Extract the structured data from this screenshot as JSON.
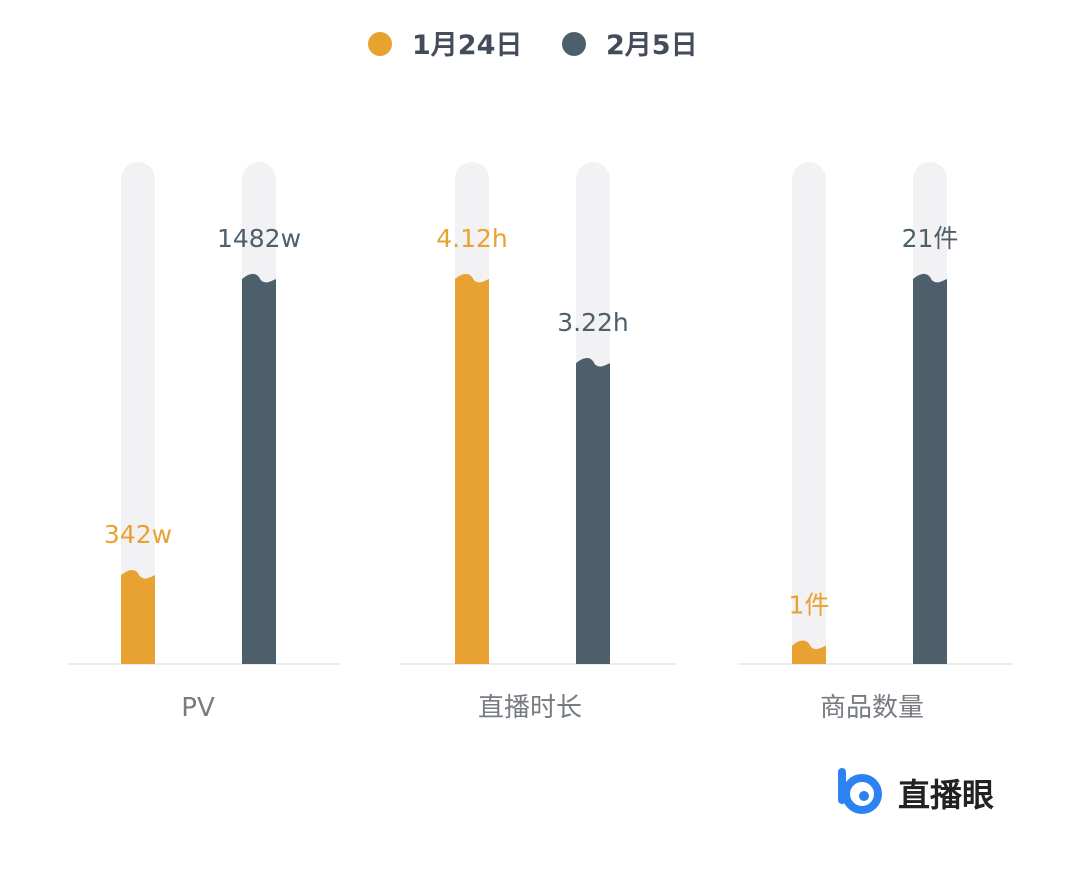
{
  "colors": {
    "series_a": "#e8a232",
    "series_b": "#4e5f6c",
    "track": "#f2f2f4",
    "baseline": "#ececec",
    "brand_blue": "#2b82f0"
  },
  "brand": {
    "name": "直播眼",
    "icon": "eye-logo-icon"
  },
  "chart_data": [
    {
      "type": "bar",
      "categories": [
        "PV"
      ],
      "series": [
        {
          "name": "1月24日",
          "values": [
            342
          ],
          "labels": [
            "342w"
          ]
        },
        {
          "name": "2月5日",
          "values": [
            1482
          ],
          "labels": [
            "1482w"
          ]
        }
      ],
      "legend": "top-center"
    },
    {
      "type": "bar",
      "categories": [
        "直播时长"
      ],
      "series": [
        {
          "name": "1月24日",
          "values": [
            4.12
          ],
          "labels": [
            "4.12h"
          ]
        },
        {
          "name": "2月5日",
          "values": [
            3.22
          ],
          "labels": [
            "3.22h"
          ]
        }
      ]
    },
    {
      "type": "bar",
      "categories": [
        "商品数量"
      ],
      "series": [
        {
          "name": "1月24日",
          "values": [
            1
          ],
          "labels": [
            "1件"
          ]
        },
        {
          "name": "2月5日",
          "values": [
            21
          ],
          "labels": [
            "21件"
          ]
        }
      ]
    }
  ],
  "legend": {
    "items": [
      {
        "label": "1月24日",
        "color": "#e8a232"
      },
      {
        "label": "2月5日",
        "color": "#4e5f6c"
      }
    ]
  }
}
